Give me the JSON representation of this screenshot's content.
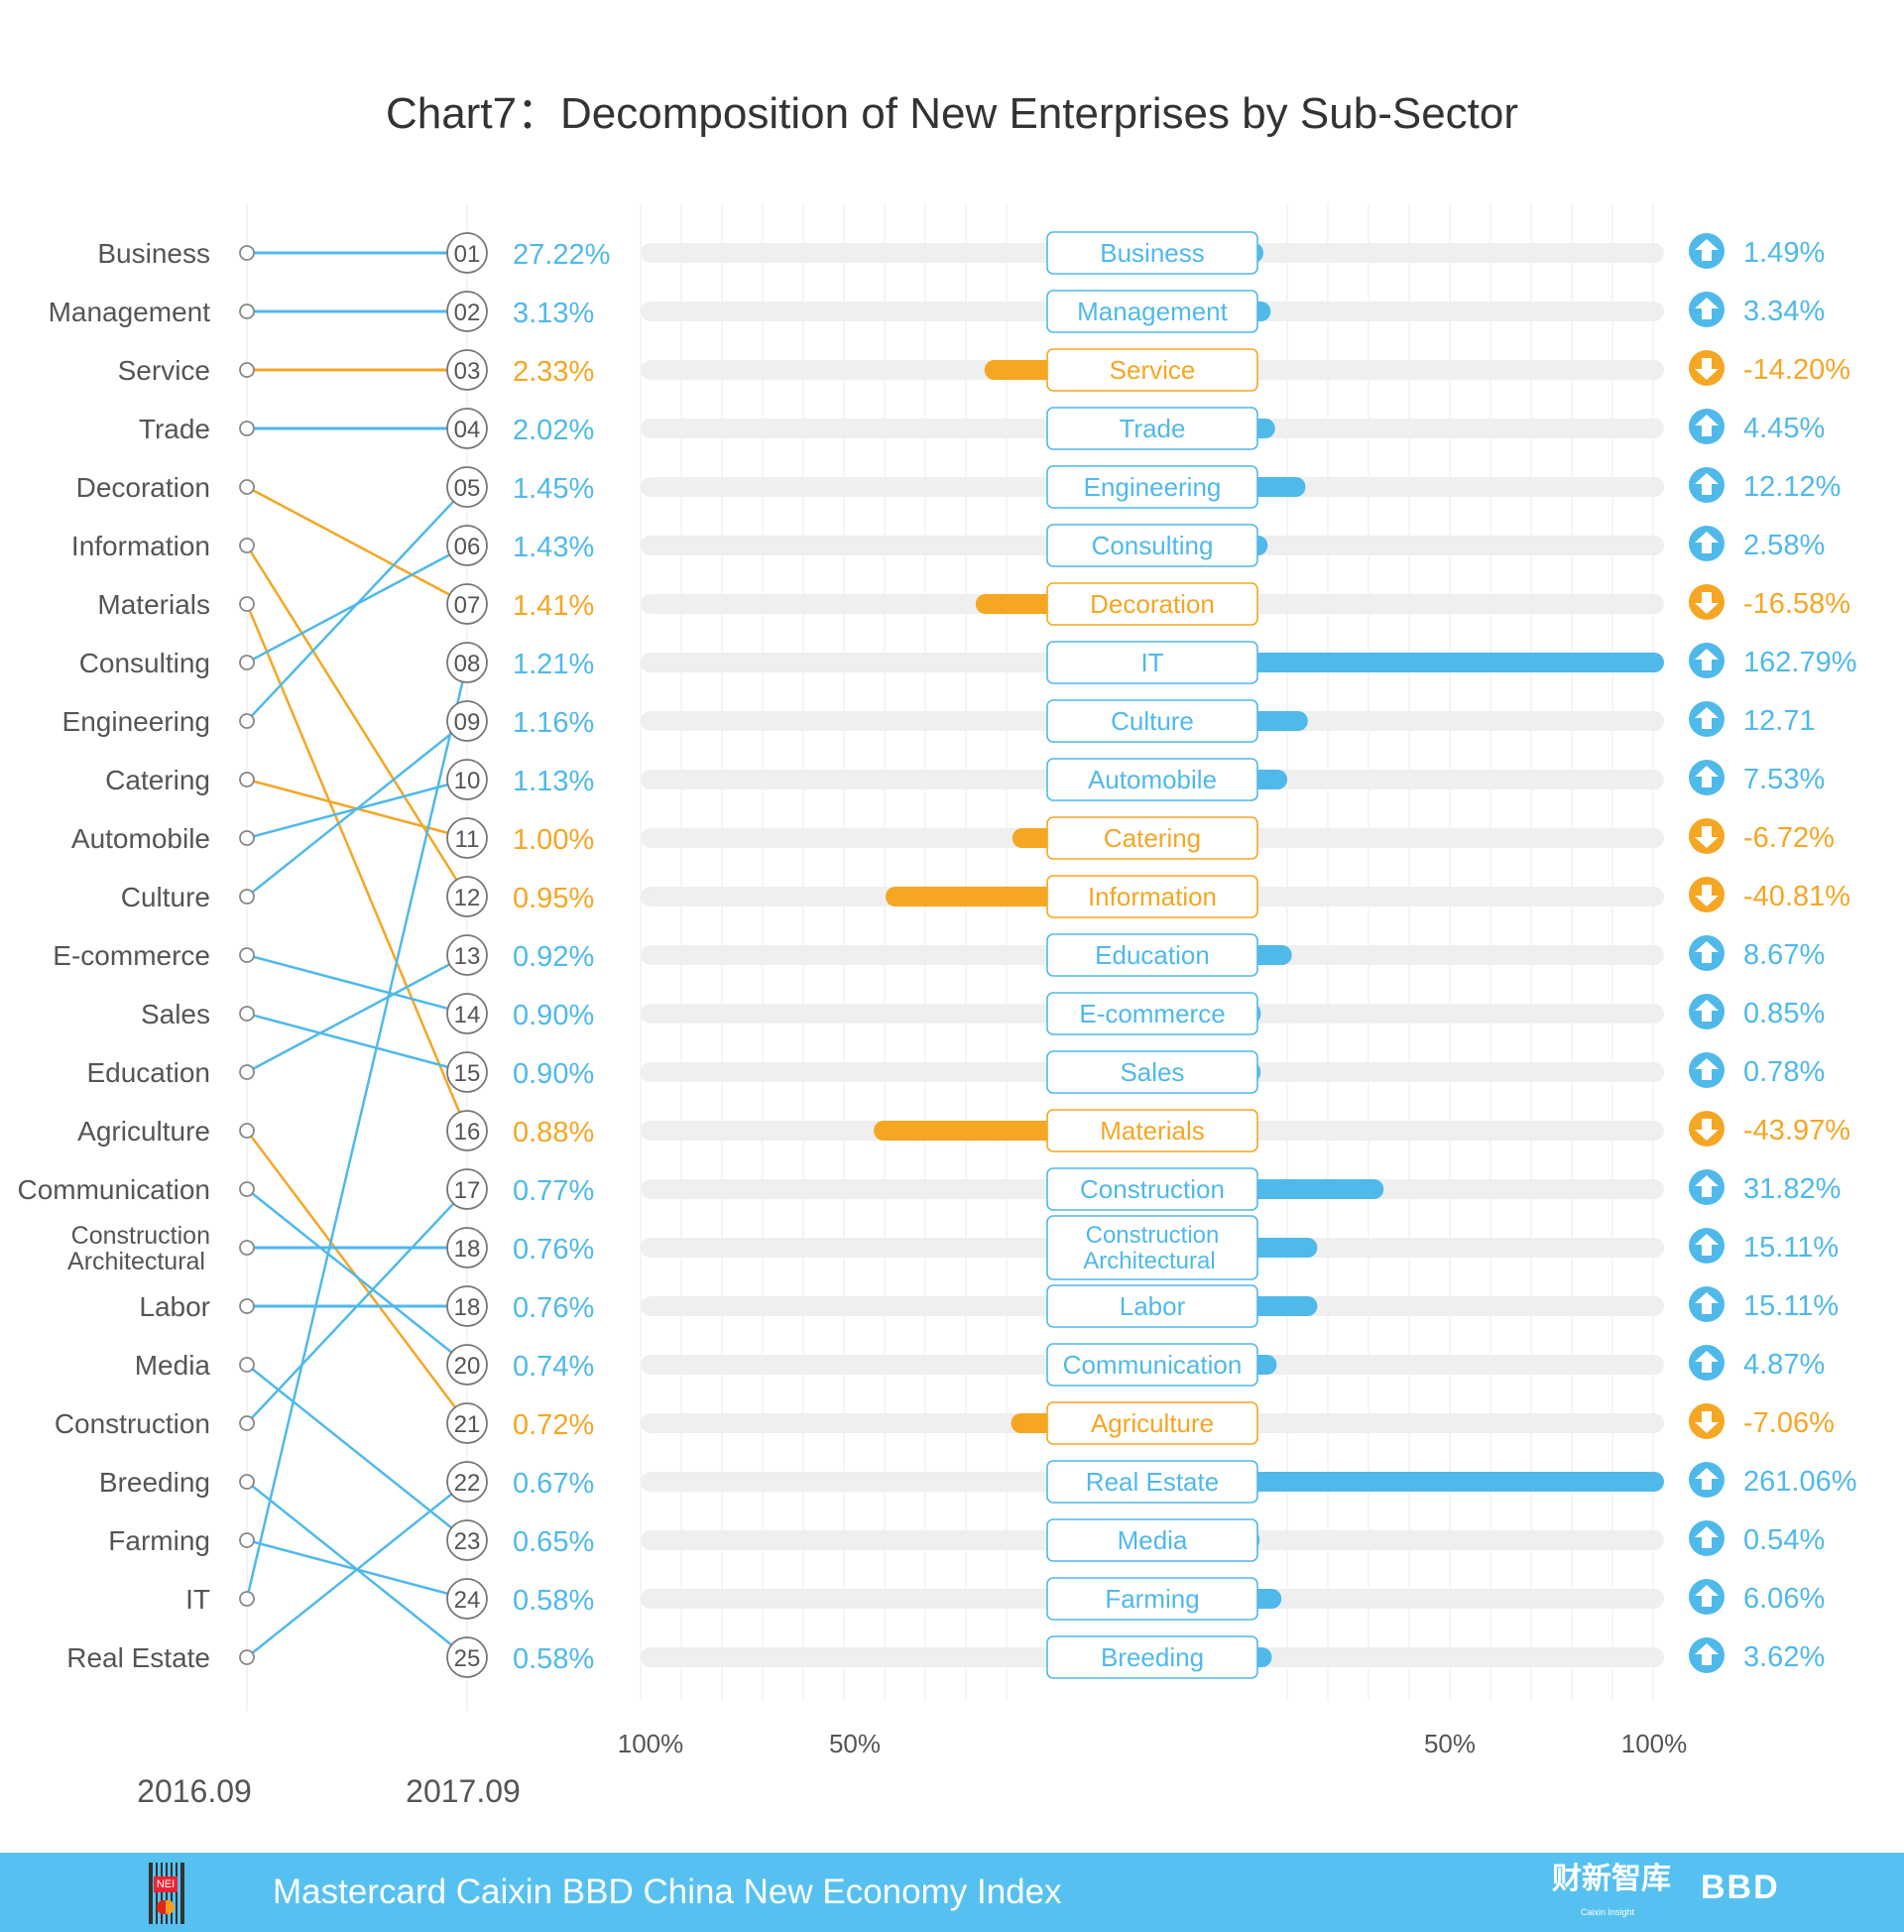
{
  "chart_data": {
    "type": "slope+diverging-bar",
    "title": "Chart7：Decomposition of New Enterprises by Sub-Sector",
    "x_labels": {
      "from": "2016.09",
      "to": "2017.09"
    },
    "axis_ticks_left": [
      "100%",
      "50%"
    ],
    "axis_ticks_right": [
      "50%",
      "100%"
    ],
    "xlim_percent": [
      -100,
      100
    ],
    "colors": {
      "increase": "#4fb9ea",
      "decrease": "#f5a623",
      "track": "#efefef",
      "grid": "#f2f2f2",
      "text": "#555555"
    },
    "left_ranking_2016": [
      {
        "label": "Business",
        "rank_row_2017": 1
      },
      {
        "label": "Management",
        "rank_row_2017": 2
      },
      {
        "label": "Service",
        "rank_row_2017": 3
      },
      {
        "label": "Trade",
        "rank_row_2017": 4
      },
      {
        "label": "Decoration",
        "rank_row_2017": 7
      },
      {
        "label": "Information",
        "rank_row_2017": 12
      },
      {
        "label": "Materials",
        "rank_row_2017": 16
      },
      {
        "label": "Consulting",
        "rank_row_2017": 6
      },
      {
        "label": "Engineering",
        "rank_row_2017": 5
      },
      {
        "label": "Catering",
        "rank_row_2017": 11
      },
      {
        "label": "Automobile",
        "rank_row_2017": 10
      },
      {
        "label": "Culture",
        "rank_row_2017": 9
      },
      {
        "label": "E-commerce",
        "rank_row_2017": 14
      },
      {
        "label": "Sales",
        "rank_row_2017": 15
      },
      {
        "label": "Education",
        "rank_row_2017": 13
      },
      {
        "label": "Agriculture",
        "rank_row_2017": 21
      },
      {
        "label": "Communication",
        "rank_row_2017": 20
      },
      {
        "label": "Construction Architectural",
        "rank_row_2017": 18
      },
      {
        "label": "Labor",
        "rank_row_2017": 19
      },
      {
        "label": "Media",
        "rank_row_2017": 23
      },
      {
        "label": "Construction",
        "rank_row_2017": 17
      },
      {
        "label": "Breeding",
        "rank_row_2017": 25
      },
      {
        "label": "Farming",
        "rank_row_2017": 24
      },
      {
        "label": "IT",
        "rank_row_2017": 8
      },
      {
        "label": "Real Estate",
        "rank_row_2017": 22
      }
    ],
    "rows_2017": [
      {
        "rank": "01",
        "share": "27.22%",
        "sector": "Business",
        "change": "1.49%",
        "change_value": 1.49
      },
      {
        "rank": "02",
        "share": "3.13%",
        "sector": "Management",
        "change": "3.34%",
        "change_value": 3.34
      },
      {
        "rank": "03",
        "share": "2.33%",
        "sector": "Service",
        "change": "-14.20%",
        "change_value": -14.2
      },
      {
        "rank": "04",
        "share": "2.02%",
        "sector": "Trade",
        "change": "4.45%",
        "change_value": 4.45
      },
      {
        "rank": "05",
        "share": "1.45%",
        "sector": "Engineering",
        "change": "12.12%",
        "change_value": 12.12
      },
      {
        "rank": "06",
        "share": "1.43%",
        "sector": "Consulting",
        "change": "2.58%",
        "change_value": 2.58
      },
      {
        "rank": "07",
        "share": "1.41%",
        "sector": "Decoration",
        "change": "-16.58%",
        "change_value": -16.58
      },
      {
        "rank": "08",
        "share": "1.21%",
        "sector": "IT",
        "change": "162.79%",
        "change_value": 162.79
      },
      {
        "rank": "09",
        "share": "1.16%",
        "sector": "Culture",
        "change": "12.71",
        "change_value": 12.71
      },
      {
        "rank": "10",
        "share": "1.13%",
        "sector": "Automobile",
        "change": "7.53%",
        "change_value": 7.53
      },
      {
        "rank": "11",
        "share": "1.00%",
        "sector": "Catering",
        "change": "-6.72%",
        "change_value": -6.72
      },
      {
        "rank": "12",
        "share": "0.95%",
        "sector": "Information",
        "change": "-40.81%",
        "change_value": -40.81
      },
      {
        "rank": "13",
        "share": "0.92%",
        "sector": "Education",
        "change": "8.67%",
        "change_value": 8.67
      },
      {
        "rank": "14",
        "share": "0.90%",
        "sector": "E-commerce",
        "change": "0.85%",
        "change_value": 0.85
      },
      {
        "rank": "15",
        "share": "0.90%",
        "sector": "Sales",
        "change": "0.78%",
        "change_value": 0.78
      },
      {
        "rank": "16",
        "share": "0.88%",
        "sector": "Materials",
        "change": "-43.97%",
        "change_value": -43.97
      },
      {
        "rank": "17",
        "share": "0.77%",
        "sector": "Construction",
        "change": "31.82%",
        "change_value": 31.82
      },
      {
        "rank": "18",
        "share": "0.76%",
        "sector": "Construction Architectural",
        "change": "15.11%",
        "change_value": 15.11
      },
      {
        "rank": "18",
        "share": "0.76%",
        "sector": "Labor",
        "change": "15.11%",
        "change_value": 15.11
      },
      {
        "rank": "20",
        "share": "0.74%",
        "sector": "Communication",
        "change": "4.87%",
        "change_value": 4.87
      },
      {
        "rank": "21",
        "share": "0.72%",
        "sector": "Agriculture",
        "change": "-7.06%",
        "change_value": -7.06
      },
      {
        "rank": "22",
        "share": "0.67%",
        "sector": "Real Estate",
        "change": "261.06%",
        "change_value": 261.06
      },
      {
        "rank": "23",
        "share": "0.65%",
        "sector": "Media",
        "change": "0.54%",
        "change_value": 0.54
      },
      {
        "rank": "24",
        "share": "0.58%",
        "sector": "Farming",
        "change": "6.06%",
        "change_value": 6.06
      },
      {
        "rank": "25",
        "share": "0.58%",
        "sector": "Breeding",
        "change": "3.62%",
        "change_value": 3.62
      }
    ]
  },
  "footer": {
    "text": "Mastercard Caixin BBD China New Economy Index",
    "logo_left_text": "NEI",
    "brand_cn": "财新智库",
    "brand_cn_sub": "Caixin Insight",
    "brand_bbd": "BBD"
  }
}
